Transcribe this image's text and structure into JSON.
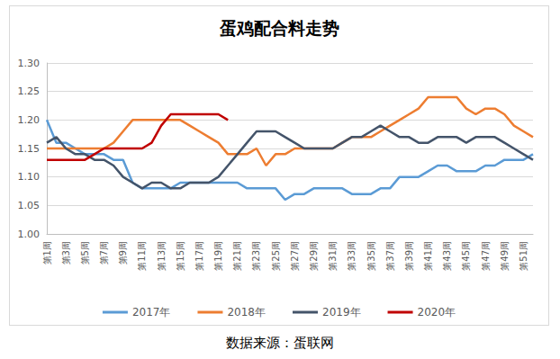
{
  "chart_data": {
    "type": "line",
    "title": "蛋鸡配合料走势",
    "source": "数据来源：蛋联网",
    "categories": [
      "第1周",
      null,
      "第3周",
      null,
      "第5周",
      null,
      "第7周",
      null,
      "第9周",
      null,
      "第11周",
      null,
      "第13周",
      null,
      "第15周",
      null,
      "第17周",
      null,
      "第19周",
      null,
      "第21周",
      null,
      "第23周",
      null,
      "第25周",
      null,
      "第27周",
      null,
      "第29周",
      null,
      "第31周",
      null,
      "第33周",
      null,
      "第35周",
      null,
      "第37周",
      null,
      "第39周",
      null,
      "第41周",
      null,
      "第43周",
      null,
      "第45周",
      null,
      "第47周",
      null,
      "第49周",
      null,
      "第51周",
      null
    ],
    "series": [
      {
        "name": "2017年",
        "color": "#5b9bd5",
        "values": [
          1.2,
          1.16,
          1.16,
          1.15,
          1.14,
          1.14,
          1.14,
          1.13,
          1.13,
          1.09,
          1.08,
          1.08,
          1.08,
          1.08,
          1.09,
          1.09,
          1.09,
          1.09,
          1.09,
          1.09,
          1.09,
          1.08,
          1.08,
          1.08,
          1.08,
          1.06,
          1.07,
          1.07,
          1.08,
          1.08,
          1.08,
          1.08,
          1.07,
          1.07,
          1.07,
          1.08,
          1.08,
          1.1,
          1.1,
          1.1,
          1.11,
          1.12,
          1.12,
          1.11,
          1.11,
          1.11,
          1.12,
          1.12,
          1.13,
          1.13,
          1.13,
          1.14
        ]
      },
      {
        "name": "2018年",
        "color": "#ed7d31",
        "values": [
          1.15,
          1.15,
          1.15,
          1.15,
          1.15,
          1.15,
          1.15,
          1.16,
          1.18,
          1.2,
          1.2,
          1.2,
          1.2,
          1.2,
          1.2,
          1.19,
          1.18,
          1.17,
          1.16,
          1.14,
          1.14,
          1.14,
          1.15,
          1.12,
          1.14,
          1.14,
          1.15,
          1.15,
          1.15,
          1.15,
          1.15,
          1.16,
          1.17,
          1.17,
          1.17,
          1.18,
          1.19,
          1.2,
          1.21,
          1.22,
          1.24,
          1.24,
          1.24,
          1.24,
          1.22,
          1.21,
          1.22,
          1.22,
          1.21,
          1.19,
          1.18,
          1.17
        ]
      },
      {
        "name": "2019年",
        "color": "#44546a",
        "values": [
          1.16,
          1.17,
          1.15,
          1.14,
          1.14,
          1.13,
          1.13,
          1.12,
          1.1,
          1.09,
          1.08,
          1.09,
          1.09,
          1.08,
          1.08,
          1.09,
          1.09,
          1.09,
          1.1,
          1.12,
          1.14,
          1.16,
          1.18,
          1.18,
          1.18,
          1.17,
          1.16,
          1.15,
          1.15,
          1.15,
          1.15,
          1.16,
          1.17,
          1.17,
          1.18,
          1.19,
          1.18,
          1.17,
          1.17,
          1.16,
          1.16,
          1.17,
          1.17,
          1.17,
          1.16,
          1.17,
          1.17,
          1.17,
          1.16,
          1.15,
          1.14,
          1.13
        ]
      },
      {
        "name": "2020年",
        "color": "#c00000",
        "values": [
          1.13,
          1.13,
          1.13,
          1.13,
          1.13,
          1.14,
          1.15,
          1.15,
          1.15,
          1.15,
          1.15,
          1.16,
          1.19,
          1.21,
          1.21,
          1.21,
          1.21,
          1.21,
          1.21,
          1.2,
          null,
          null,
          null,
          null,
          null,
          null,
          null,
          null,
          null,
          null,
          null,
          null,
          null,
          null,
          null,
          null,
          null,
          null,
          null,
          null,
          null,
          null,
          null,
          null,
          null,
          null,
          null,
          null,
          null,
          null,
          null,
          null
        ]
      }
    ],
    "ylim": [
      1.0,
      1.3
    ],
    "yticks": [
      {
        "value": 1.0,
        "label": "1.00"
      },
      {
        "value": 1.05,
        "label": "1.05"
      },
      {
        "value": 1.1,
        "label": "1.10"
      },
      {
        "value": 1.15,
        "label": "1.15"
      },
      {
        "value": 1.2,
        "label": "1.20"
      },
      {
        "value": 1.25,
        "label": "1.25"
      },
      {
        "value": 1.3,
        "label": "1.30"
      }
    ],
    "grid": true,
    "legend": "bottom"
  }
}
